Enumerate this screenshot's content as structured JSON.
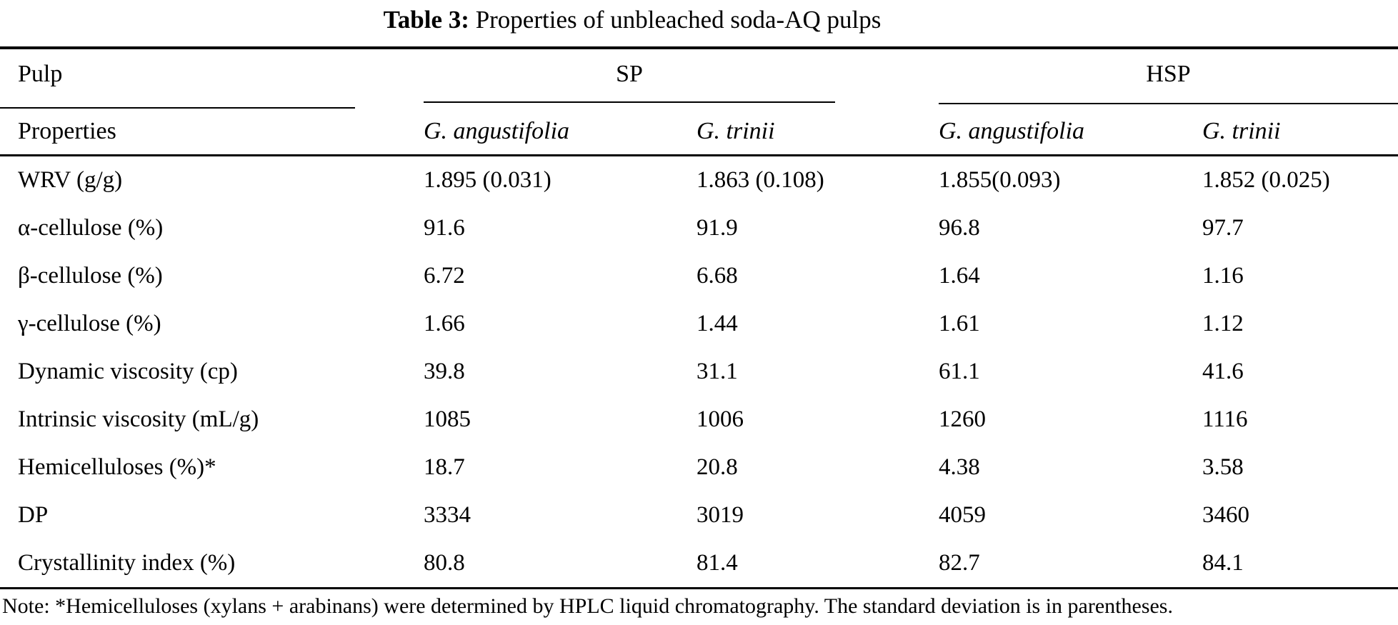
{
  "title": {
    "label": "Table 3:",
    "text": " Properties of unbleached soda-AQ pulps"
  },
  "table": {
    "group_header": {
      "pulp": "Pulp",
      "sp": "SP",
      "hsp": "HSP"
    },
    "col_header": {
      "properties": "Properties",
      "cols": [
        "G. angustifolia",
        "G. trinii",
        "G. angustifolia",
        "G. trinii"
      ]
    },
    "rows": [
      {
        "property": "WRV (g/g)",
        "values": [
          "1.895 (0.031)",
          "1.863 (0.108)",
          "1.855(0.093)",
          "1.852 (0.025)"
        ]
      },
      {
        "property": "α-cellulose (%)",
        "values": [
          "91.6",
          "91.9",
          "96.8",
          "97.7"
        ]
      },
      {
        "property": "β-cellulose (%)",
        "values": [
          "6.72",
          "6.68",
          "1.64",
          "1.16"
        ]
      },
      {
        "property": "γ-cellulose (%)",
        "values": [
          "1.66",
          "1.44",
          "1.61",
          "1.12"
        ]
      },
      {
        "property": "Dynamic viscosity (cp)",
        "values": [
          "39.8",
          "31.1",
          "61.1",
          "41.6"
        ]
      },
      {
        "property": "Intrinsic viscosity (mL/g)",
        "values": [
          "1085",
          "1006",
          "1260",
          "1116"
        ]
      },
      {
        "property": "Hemicelluloses (%)*",
        "values": [
          "18.7",
          "20.8",
          "4.38",
          "3.58"
        ]
      },
      {
        "property": "DP",
        "values": [
          "3334",
          "3019",
          "4059",
          "3460"
        ]
      },
      {
        "property": "Crystallinity index (%)",
        "values": [
          "80.8",
          "81.4",
          "82.7",
          "84.1"
        ]
      }
    ],
    "note": "Note: *Hemicelluloses (xylans + arabinans) were determined by HPLC liquid chromatography. The standard deviation is in parentheses."
  },
  "colors": {
    "text": "#000000",
    "background": "#ffffff",
    "rule": "#000000"
  }
}
